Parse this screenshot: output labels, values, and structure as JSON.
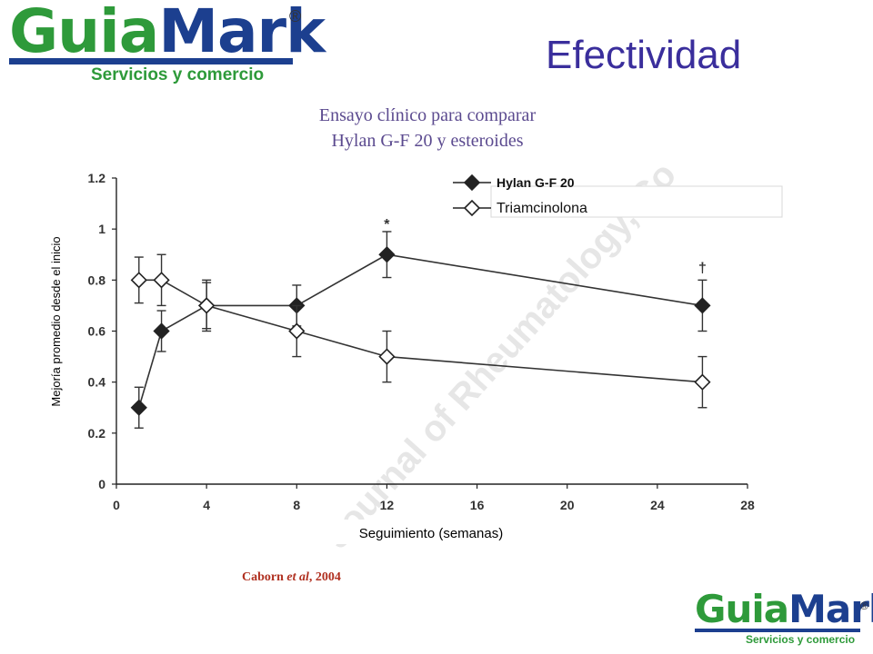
{
  "logo": {
    "guia": "Guia",
    "mark": "Mark",
    "registered": "®",
    "tagline": "Servicios y comercio"
  },
  "slide_title": "Efectividad",
  "chart_title_line1": "Ensayo clínico para comparar",
  "chart_title_line2": "Hylan G-F 20 y esteroides",
  "watermark": "Journal of Rheumatology, Co",
  "citation": {
    "author": "Caborn",
    "etal": "et al",
    "year": ", 2004"
  },
  "colors": {
    "logo_green": "#2e9a3a",
    "logo_blue": "#1c3f8f",
    "title": "#3a2e9c",
    "chart_title": "#5b4a8f",
    "citation": "#b03020"
  },
  "chart_data": {
    "type": "line",
    "xlabel": "Seguimiento (semanas)",
    "ylabel": "Mejoría promedio desde el inicio",
    "xlim": [
      0,
      28
    ],
    "ylim": [
      0,
      1.2
    ],
    "xticks": [
      0,
      4,
      8,
      12,
      16,
      20,
      24,
      28
    ],
    "yticks": [
      0,
      0.2,
      0.4,
      0.6,
      0.8,
      1,
      1.2
    ],
    "xtick_labels": [
      "0",
      "4",
      "8",
      "12",
      "16",
      "20",
      "24",
      "28"
    ],
    "ytick_labels": [
      "0",
      "0.2",
      "0.4",
      "0.6",
      "0.8",
      "1",
      "1.2"
    ],
    "legend_position": "top-right",
    "series": [
      {
        "name": "Hylan G-F 20",
        "marker": "filled-diamond",
        "x": [
          1,
          2,
          4,
          8,
          12,
          26
        ],
        "y": [
          0.3,
          0.6,
          0.7,
          0.7,
          0.9,
          0.7
        ],
        "err": [
          0.08,
          0.08,
          0.1,
          0.08,
          0.09,
          0.1
        ]
      },
      {
        "name": "Triamcinolona",
        "marker": "open-diamond",
        "x": [
          1,
          2,
          4,
          8,
          12,
          26
        ],
        "y": [
          0.8,
          0.8,
          0.7,
          0.6,
          0.5,
          0.4
        ],
        "err": [
          0.09,
          0.1,
          0.09,
          0.1,
          0.1,
          0.1
        ]
      }
    ],
    "annotations": [
      {
        "text": "*",
        "x": 12,
        "y": 1.0
      },
      {
        "text": "†",
        "x": 26,
        "y": 0.83
      }
    ]
  }
}
